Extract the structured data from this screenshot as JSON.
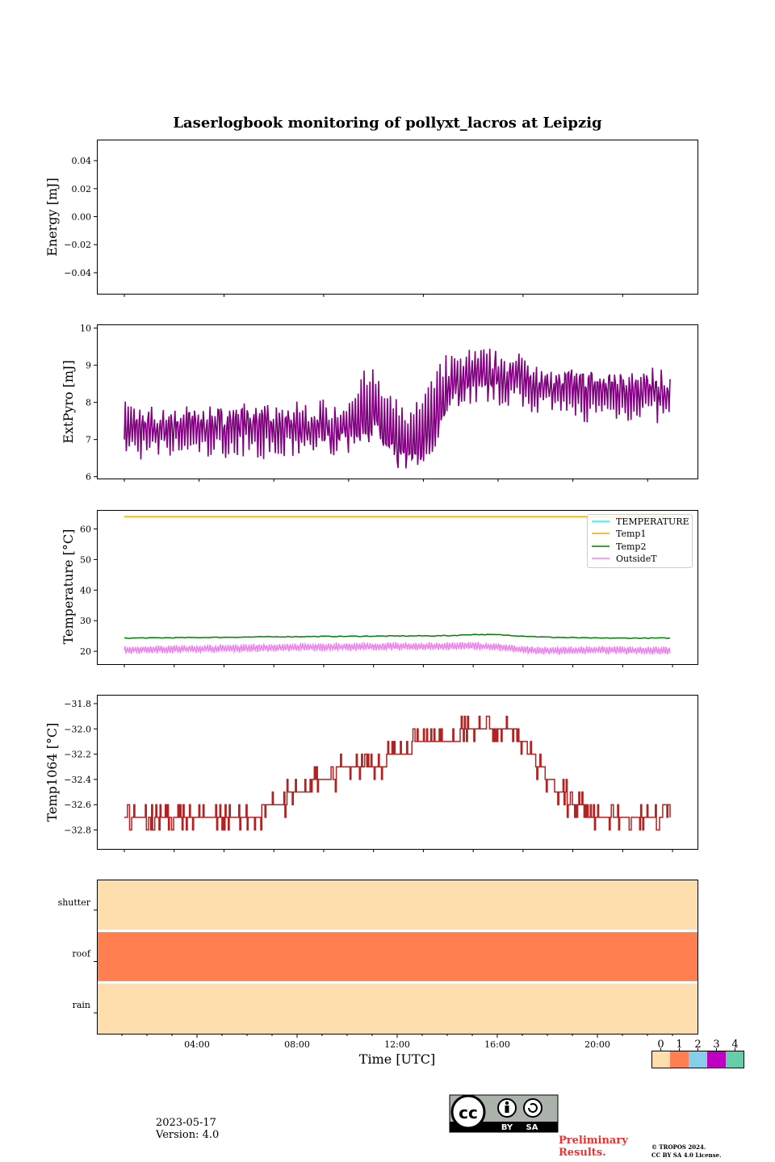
{
  "figure": {
    "title": "Laserlogbook monitoring of pollyxt_lacros at Leipzig",
    "xlabel": "Time [UTC]",
    "date": "2023-05-17",
    "version": "Version: 4.0",
    "preliminary_line1": "Preliminary",
    "preliminary_line2": "Results.",
    "copyright_line1": "© TROPOS 2024.",
    "copyright_line2": "CC BY SA 4.0 License.",
    "license_badge": {
      "by_label": "BY",
      "sa_label": "SA",
      "cc_label": "cc"
    }
  },
  "chart_data": [
    {
      "type": "line",
      "ylabel": "Energy [mJ]",
      "ylim": [
        -0.055,
        0.055
      ],
      "yticks": [
        "0.04",
        "0.02",
        "0.00",
        "−0.02",
        "−0.04"
      ],
      "series": []
    },
    {
      "type": "line",
      "ylabel": "ExtPyro [mJ]",
      "ylim": [
        5.95,
        10.1
      ],
      "yticks": [
        "10",
        "9",
        "8",
        "7",
        "6"
      ],
      "series": [
        {
          "color": "#800080",
          "x": [
            1.0,
            2.0,
            3.0,
            4.0,
            5.0,
            6.0,
            7.0,
            8.0,
            9.0,
            10.0,
            10.5,
            11.0,
            11.5,
            12.0,
            12.5,
            13.0,
            13.5,
            14.0,
            14.5,
            15.0,
            16.0,
            17.0,
            18.0,
            19.0,
            20.0,
            21.0,
            22.0,
            22.9
          ],
          "values": [
            7.3,
            7.2,
            7.3,
            7.3,
            7.3,
            7.4,
            7.2,
            7.3,
            7.3,
            7.3,
            7.7,
            7.8,
            7.2,
            6.9,
            6.8,
            7.1,
            7.7,
            8.4,
            8.6,
            8.7,
            8.7,
            8.6,
            8.4,
            8.3,
            8.3,
            8.3,
            8.3,
            8.1
          ]
        }
      ]
    },
    {
      "type": "line",
      "ylabel": "Temperature [°C]",
      "ylim": [
        15.8,
        66.2
      ],
      "yticks": [
        "60",
        "50",
        "40",
        "30",
        "20"
      ],
      "legend": "top-right",
      "legend_entries": [
        "TEMPERATURE",
        "Temp1",
        "Temp2",
        "OutsideT"
      ],
      "series": [
        {
          "name": "TEMPERATURE",
          "color": "#00ffff",
          "x": [],
          "values": []
        },
        {
          "name": "Temp1",
          "color": "#ffa500",
          "x": [
            1.0,
            22.9
          ],
          "values": [
            64.0,
            64.0
          ]
        },
        {
          "name": "Temp2",
          "color": "#008000",
          "x": [
            1.0,
            4.0,
            8.0,
            12.0,
            14.0,
            15.0,
            16.0,
            17.0,
            18.0,
            20.0,
            22.9
          ],
          "values": [
            24.3,
            24.5,
            24.8,
            25.0,
            25.1,
            25.5,
            25.4,
            25.0,
            24.6,
            24.3,
            24.3
          ]
        },
        {
          "name": "OutsideT",
          "color": "#ee82ee",
          "x": [
            1.0,
            4.0,
            8.0,
            12.0,
            14.0,
            15.0,
            16.0,
            17.0,
            18.0,
            20.0,
            22.9
          ],
          "values": [
            20.5,
            20.8,
            21.3,
            21.6,
            21.6,
            21.8,
            21.4,
            20.5,
            20.2,
            20.4,
            20.3
          ]
        }
      ]
    },
    {
      "type": "line",
      "ylabel": "Temp1064 [°C]",
      "ylim": [
        -32.95,
        -31.73
      ],
      "yticks": [
        "−31.8",
        "−32.0",
        "−32.2",
        "−32.4",
        "−32.6",
        "−32.8"
      ],
      "series": [
        {
          "color": "#b22222",
          "x": [
            1.0,
            2.0,
            3.0,
            4.0,
            5.0,
            6.0,
            7.0,
            8.0,
            9.0,
            10.0,
            11.0,
            12.0,
            13.0,
            14.0,
            15.0,
            16.0,
            16.5,
            17.0,
            18.0,
            19.0,
            20.0,
            21.0,
            22.0,
            22.9
          ],
          "values": [
            -32.7,
            -32.75,
            -32.75,
            -32.75,
            -32.75,
            -32.7,
            -32.6,
            -32.5,
            -32.4,
            -32.3,
            -32.3,
            -32.2,
            -32.1,
            -32.1,
            -32.0,
            -32.0,
            -31.95,
            -32.1,
            -32.4,
            -32.6,
            -32.7,
            -32.7,
            -32.7,
            -32.7
          ]
        }
      ]
    },
    {
      "type": "heatmap",
      "rows": [
        "shutter",
        "roof",
        "rain"
      ],
      "values": [
        0,
        1,
        0
      ],
      "colorbar_ticks": [
        "0",
        "1",
        "2",
        "3",
        "4"
      ],
      "colorbar_colors": [
        "#ffdead",
        "#ff7f50",
        "#87ceeb",
        "#c000c0",
        "#66cdaa"
      ],
      "xlim": [
        0,
        24
      ],
      "xticks": [
        "04:00",
        "08:00",
        "12:00",
        "16:00",
        "20:00"
      ]
    }
  ]
}
